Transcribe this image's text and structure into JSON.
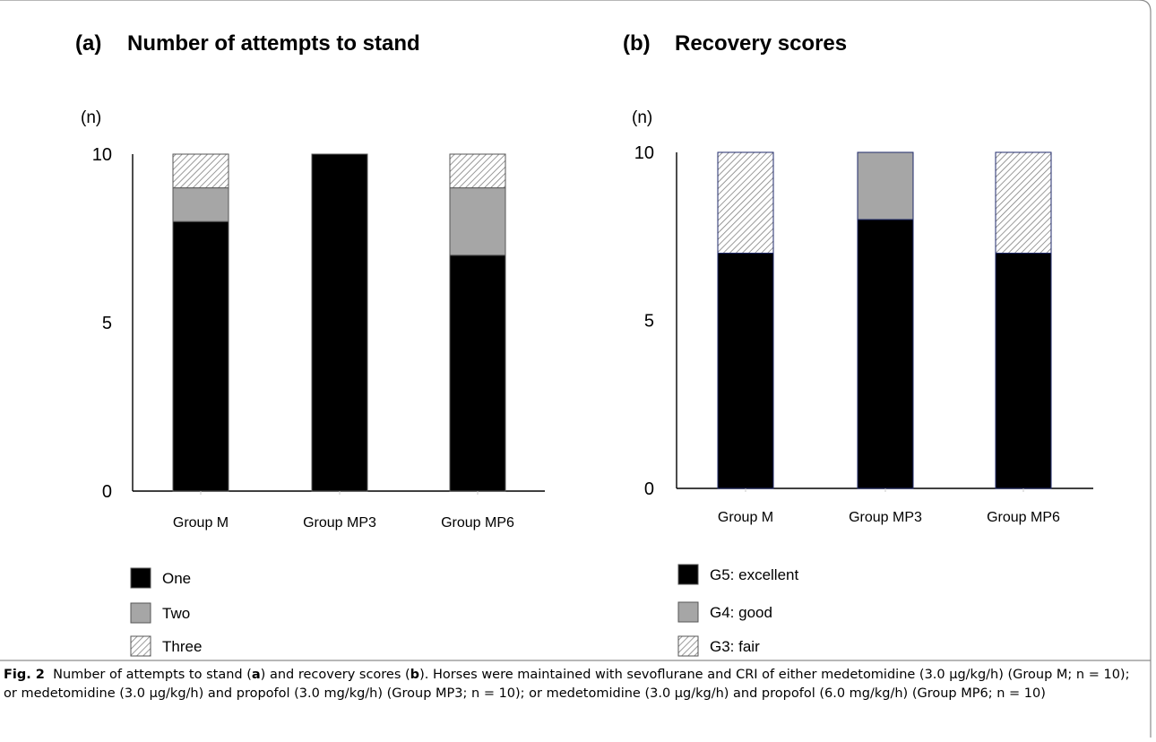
{
  "panels": [
    {
      "label": "(a)",
      "title": "Number of attempts to stand",
      "unit": "(n)"
    },
    {
      "label": "(b)",
      "title": "Recovery scores",
      "unit": "(n)"
    }
  ],
  "colors": {
    "one": "#000000",
    "two": "#a6a6a6",
    "three_hatch": "#808080",
    "edge_a": "#555555",
    "edge_b": "#1f2a6b"
  },
  "chart_data": [
    {
      "type": "bar",
      "stacked": true,
      "title": "Number of attempts to stand",
      "ylabel": "(n)",
      "xlabel": "",
      "ylim": [
        0,
        10
      ],
      "yticks": [
        0,
        5,
        10
      ],
      "categories": [
        "Group M",
        "Group MP3",
        "Group MP6"
      ],
      "series": [
        {
          "name": "One",
          "values": [
            8,
            10,
            7
          ],
          "fill": "solid-black"
        },
        {
          "name": "Two",
          "values": [
            1,
            0,
            2
          ],
          "fill": "solid-gray"
        },
        {
          "name": "Three",
          "values": [
            1,
            0,
            1
          ],
          "fill": "hatch"
        }
      ],
      "legend": "bottom-left",
      "grid": false
    },
    {
      "type": "bar",
      "stacked": true,
      "title": "Recovery scores",
      "ylabel": "(n)",
      "xlabel": "",
      "ylim": [
        0,
        10
      ],
      "yticks": [
        0,
        5,
        10
      ],
      "categories": [
        "Group M",
        "Group MP3",
        "Group MP6"
      ],
      "series": [
        {
          "name": "G5: excellent",
          "values": [
            7,
            8,
            7
          ],
          "fill": "solid-black"
        },
        {
          "name": "G4: good",
          "values": [
            0,
            2,
            0
          ],
          "fill": "solid-gray"
        },
        {
          "name": "G3: fair",
          "values": [
            3,
            0,
            3
          ],
          "fill": "hatch"
        }
      ],
      "legend": "bottom-left",
      "grid": false
    }
  ],
  "caption": {
    "label": "Fig. 2",
    "parts": [
      "Number of attempts to stand (",
      "a",
      ") and recovery scores (",
      "b",
      "). Horses were maintained with sevoflurane and CRI of either medetomidine (3.0 µg/kg/h) (Group M; n = 10); or medetomidine (3.0 µg/kg/h) and propofol (3.0 mg/kg/h) (Group MP3; n = 10); or medetomidine (3.0 µg/kg/h) and propofol (6.0 mg/kg/h) (Group MP6; n = 10)"
    ]
  }
}
